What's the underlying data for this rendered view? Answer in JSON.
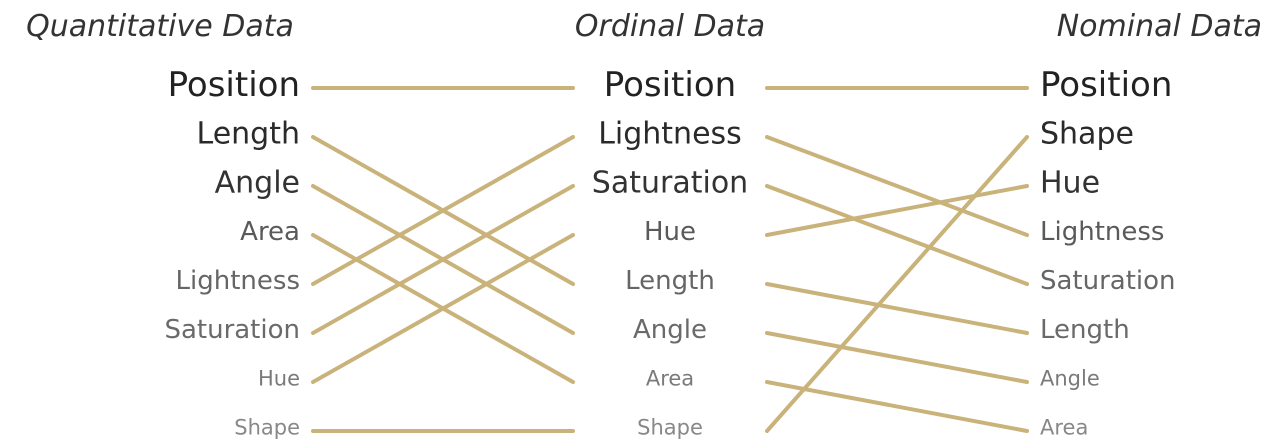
{
  "columns": [
    {
      "title": "Quantitative Data",
      "items": [
        "Position",
        "Length",
        "Angle",
        "Area",
        "Lightness",
        "Saturation",
        "Hue",
        "Shape"
      ]
    },
    {
      "title": "Ordinal Data",
      "items": [
        "Position",
        "Lightness",
        "Saturation",
        "Hue",
        "Length",
        "Angle",
        "Area",
        "Shape"
      ]
    },
    {
      "title": "Nominal Data",
      "items": [
        "Position",
        "Shape",
        "Hue",
        "Lightness",
        "Saturation",
        "Length",
        "Angle",
        "Area"
      ]
    }
  ],
  "colors": {
    "line": "#c9b37a",
    "title": "#333333",
    "item_shades": [
      "#222222",
      "#2a2a2a",
      "#333333",
      "#5a5a5a",
      "#666666",
      "#6a6a6a",
      "#7a7a7a",
      "#888888"
    ]
  }
}
